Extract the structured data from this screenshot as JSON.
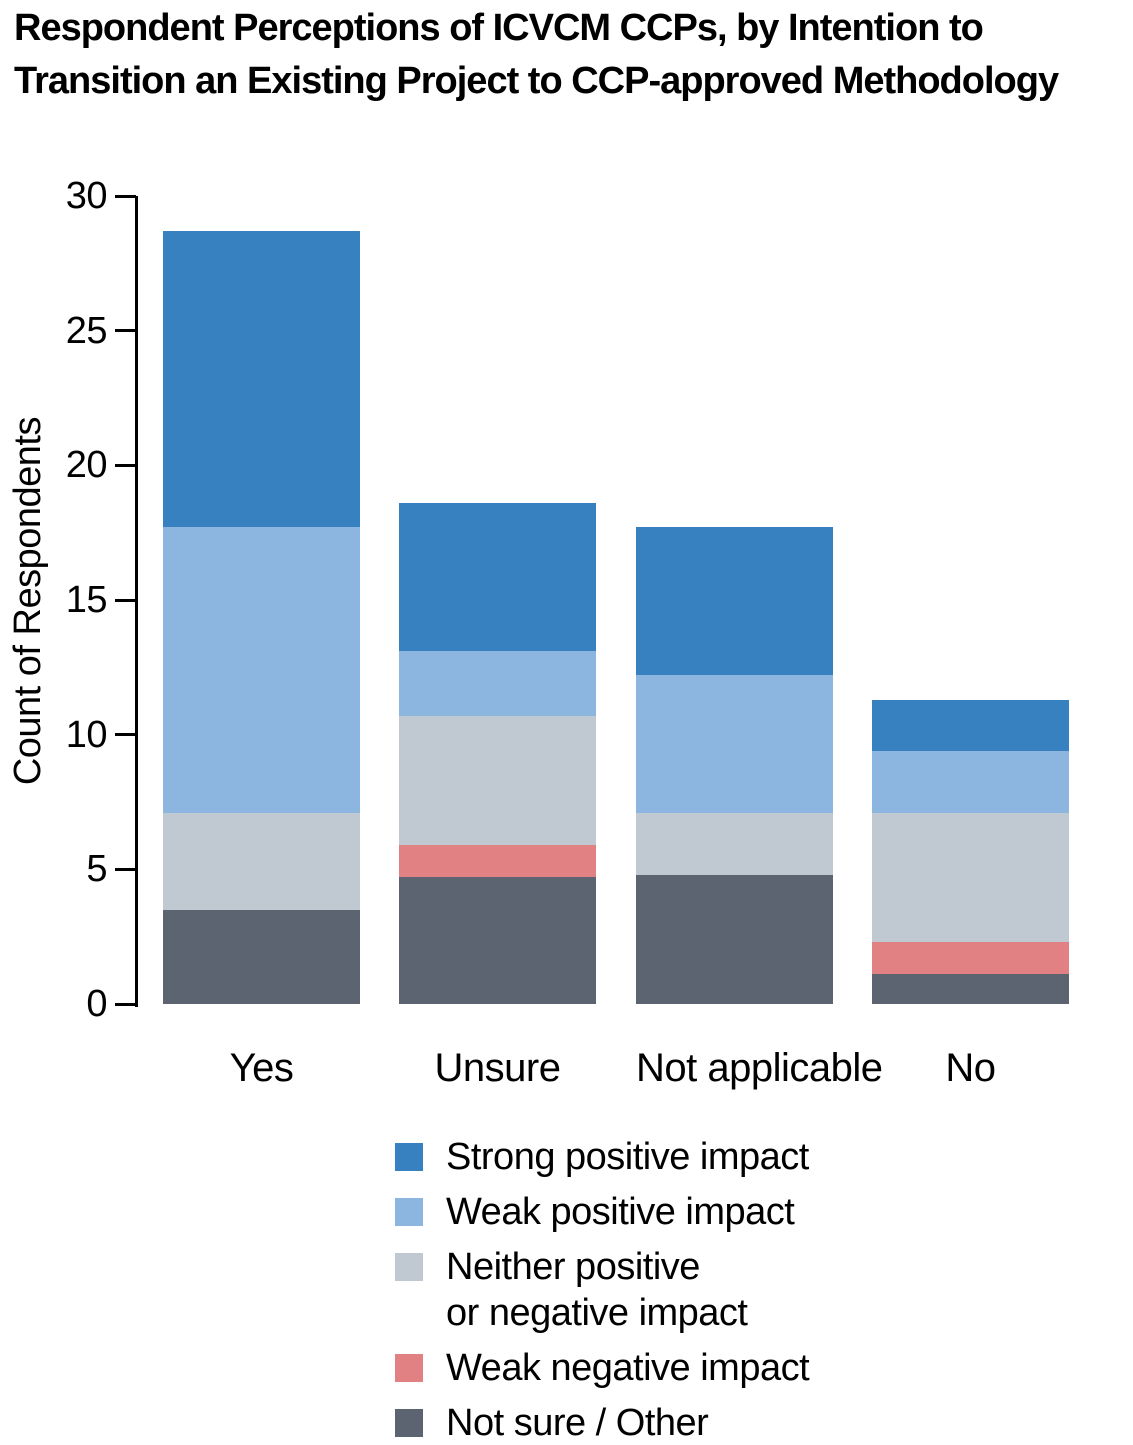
{
  "chart_data": {
    "type": "bar",
    "stacked": true,
    "title": "Respondent Perceptions of ICVCM CCPs, by Intention to Transition an Existing Project to CCP-approved Methodology",
    "xlabel": "",
    "ylabel": "Count of Respondents",
    "ylim": [
      0,
      30
    ],
    "yticks": [
      0,
      5,
      10,
      15,
      20,
      25,
      30
    ],
    "grid": false,
    "legend_position": "bottom-center",
    "categories": [
      "Yes",
      "Unsure",
      "Not applicable",
      "No"
    ],
    "series": [
      {
        "name": "Strong positive impact",
        "legend_lines": [
          "Strong positive impact"
        ],
        "color": "#3781c1",
        "values": [
          11.0,
          5.5,
          5.5,
          1.9
        ]
      },
      {
        "name": "Weak positive impact",
        "legend_lines": [
          "Weak positive impact"
        ],
        "color": "#8cb5e0",
        "values": [
          10.6,
          2.4,
          5.1,
          2.3
        ]
      },
      {
        "name": "Neither positive or negative impact",
        "legend_lines": [
          "Neither positive",
          "or negative impact"
        ],
        "color": "#c0c8d2",
        "values": [
          3.6,
          4.8,
          2.3,
          4.8
        ]
      },
      {
        "name": "Weak negative impact",
        "legend_lines": [
          "Weak negative impact"
        ],
        "color": "#e28183",
        "values": [
          0,
          1.2,
          0,
          1.2
        ]
      },
      {
        "name": "Not sure / Other",
        "legend_lines": [
          "Not sure / Other"
        ],
        "color": "#5d6471",
        "values": [
          3.5,
          4.7,
          4.8,
          1.1
        ]
      }
    ],
    "bar_totals": [
      28.7,
      18.6,
      17.7,
      11.3
    ],
    "stack_note": "series listed top-of-stack first; legend order matches"
  }
}
